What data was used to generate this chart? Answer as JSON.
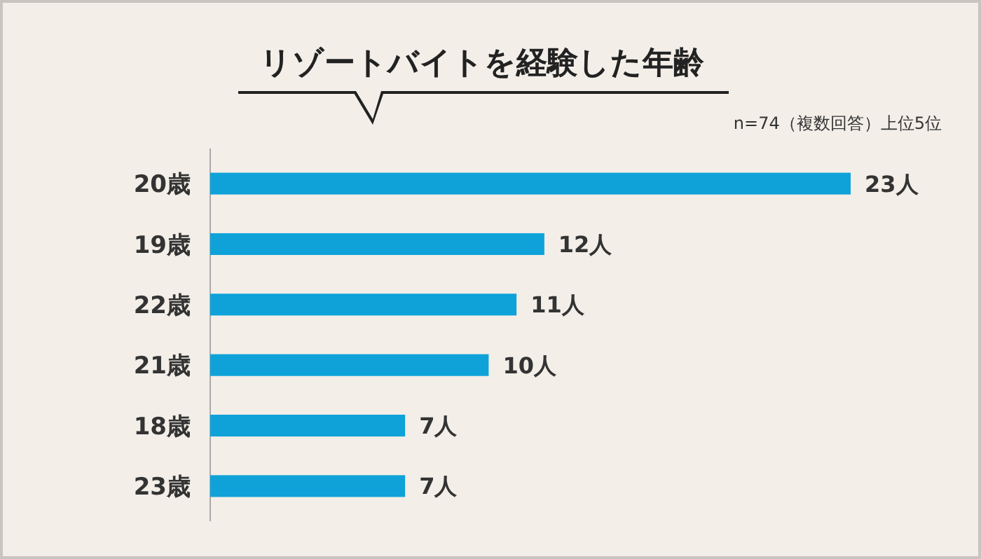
{
  "chart_data": {
    "type": "bar",
    "orientation": "horizontal",
    "title": "リゾートバイトを経験した年齢",
    "subtitle": "n=74（複数回答）上位5位",
    "categories": [
      "20歳",
      "19歳",
      "22歳",
      "21歳",
      "18歳",
      "23歳"
    ],
    "values": [
      23,
      12,
      11,
      10,
      7,
      7
    ],
    "value_labels": [
      "23人",
      "12人",
      "11人",
      "10人",
      "7人",
      "7人"
    ],
    "color": "#0ea2d9"
  }
}
